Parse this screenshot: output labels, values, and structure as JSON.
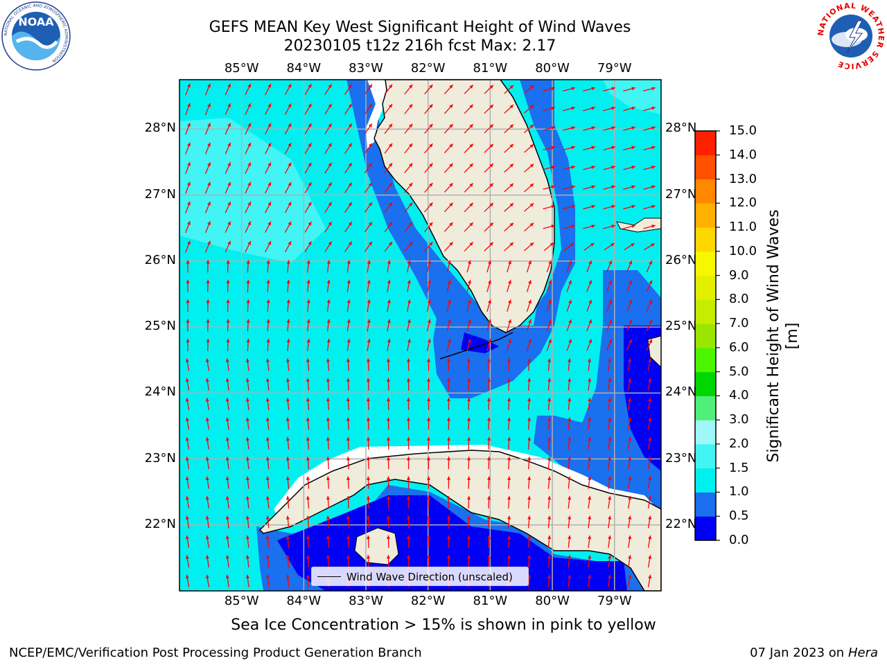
{
  "header": {
    "title_line1": "GEFS MEAN Key West Significant Height of Wind Waves",
    "title_line2": "20230105 t12z 216h fcst   Max: 2.17"
  },
  "logos": {
    "noaa": {
      "text": "NOAA",
      "ring_text": "NATIONAL OCEANIC AND ATMOSPHERIC ADMINISTRATION",
      "icon": "noaa-logo"
    },
    "nws": {
      "ring_text": "NATIONAL WEATHER SERVICE",
      "icon": "nws-logo"
    }
  },
  "map": {
    "lon_labels": [
      "85°W",
      "84°W",
      "83°W",
      "82°W",
      "81°W",
      "80°W",
      "79°W"
    ],
    "lon_values": [
      -85,
      -84,
      -83,
      -82,
      -81,
      -80,
      -79
    ],
    "lat_labels": [
      "28°N",
      "27°N",
      "26°N",
      "25°N",
      "24°N",
      "23°N",
      "22°N"
    ],
    "lat_values": [
      28,
      27,
      26,
      25,
      24,
      23,
      22
    ],
    "extent": {
      "lon_min": -86,
      "lon_max": -78.25,
      "lat_min": 21,
      "lat_max": 28.75
    },
    "gridlines": true,
    "legend": {
      "label": "Wind Wave Direction (unscaled)",
      "placement": "lower-center"
    }
  },
  "colorbar": {
    "title": "Significant Height of Wind Waves [m]",
    "levels": [
      "0.0",
      "0.5",
      "1.0",
      "1.5",
      "2.0",
      "3.0",
      "4.0",
      "5.0",
      "6.0",
      "7.0",
      "8.0",
      "9.0",
      "10.0",
      "11.0",
      "12.0",
      "13.0",
      "14.0",
      "15.0"
    ],
    "colors": [
      "#0000f5",
      "#1a70ee",
      "#00f0f0",
      "#43f4f4",
      "#a0f7f7",
      "#50ef7a",
      "#00d700",
      "#4df500",
      "#9ae600",
      "#c6ec00",
      "#e2f000",
      "#f7f700",
      "#ffd700",
      "#ffb000",
      "#ff8800",
      "#ff5000",
      "#ff2000"
    ]
  },
  "map_colors": {
    "ocean_light": "#00f0f0",
    "ocean_lighter": "#43f4f4",
    "ocean_mid": "#1a70ee",
    "ocean_deep": "#0000f5",
    "land": "#efecdc",
    "arrow": "#ff0000",
    "grid": "#b0b0b0"
  },
  "caption": "Sea Ice Concentration > 15% is shown in pink to yellow",
  "footer": {
    "left": "NCEP/EMC/Verification Post Processing Product Generation Branch",
    "date": "07 Jan 2023 on ",
    "machine": "Hera"
  }
}
